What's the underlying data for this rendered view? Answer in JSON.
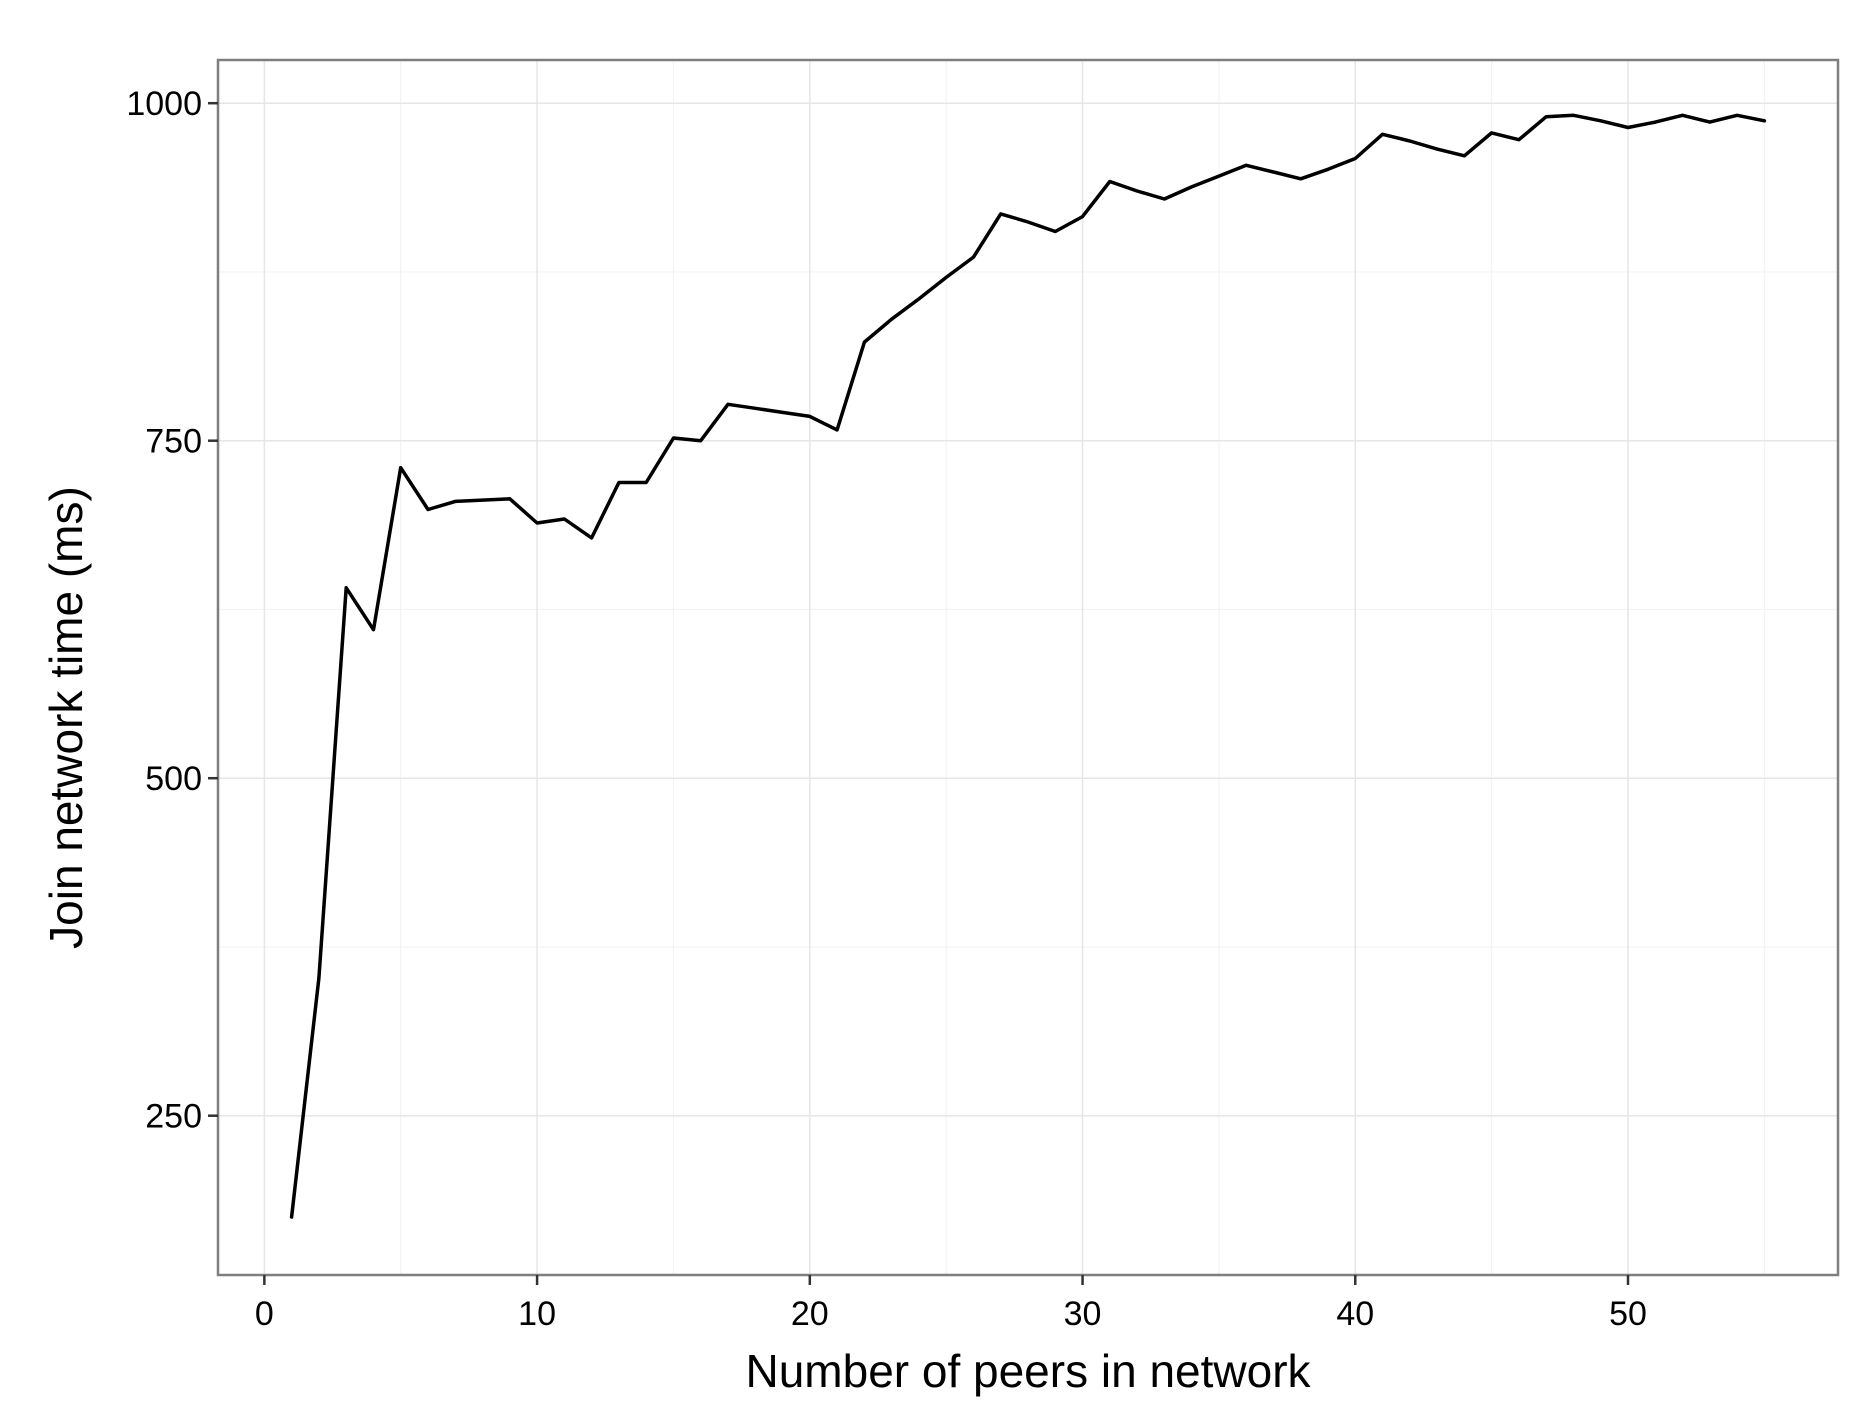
{
  "chart_data": {
    "type": "line",
    "title": "",
    "xlabel": "Number of peers in network",
    "ylabel": "Join network time (ms)",
    "xlim": [
      -1.7,
      57.7
    ],
    "ylim": [
      132,
      1032
    ],
    "x_ticks": [
      0,
      10,
      20,
      30,
      40,
      50
    ],
    "x_tick_labels": [
      "0",
      "10",
      "20",
      "30",
      "40",
      "50"
    ],
    "y_ticks": [
      250,
      500,
      750,
      1000
    ],
    "y_tick_labels": [
      "250",
      "500",
      "750",
      "1000"
    ],
    "grid": true,
    "legend": "none",
    "colors": {
      "line": "#000000",
      "background": "#ffffff",
      "grid": "#e6e6e6",
      "border": "#7f7f7f"
    },
    "series": [
      {
        "x": [
          1,
          2,
          3,
          4,
          5,
          6,
          7,
          8,
          9,
          10,
          11,
          12,
          13,
          14,
          15,
          16,
          17,
          18,
          19,
          20,
          21,
          22,
          23,
          24,
          25,
          26,
          27,
          28,
          29,
          30,
          31,
          32,
          33,
          34,
          35,
          36,
          37,
          38,
          39,
          40,
          41,
          42,
          43,
          44,
          45,
          46,
          47,
          48,
          49,
          50,
          51,
          52,
          53,
          54,
          55
        ],
        "values": [
          175,
          352,
          641,
          610,
          730,
          699,
          705,
          706,
          707,
          689,
          692,
          678,
          719,
          719,
          752,
          750,
          777,
          774,
          771,
          768,
          758,
          823,
          840,
          855,
          871,
          886,
          918,
          912,
          905,
          916,
          942,
          935,
          929,
          938,
          946,
          954,
          949,
          944,
          951,
          959,
          977,
          972,
          966,
          961,
          978,
          973,
          990,
          991,
          987,
          982,
          986,
          991,
          986,
          991,
          987
        ]
      }
    ]
  }
}
